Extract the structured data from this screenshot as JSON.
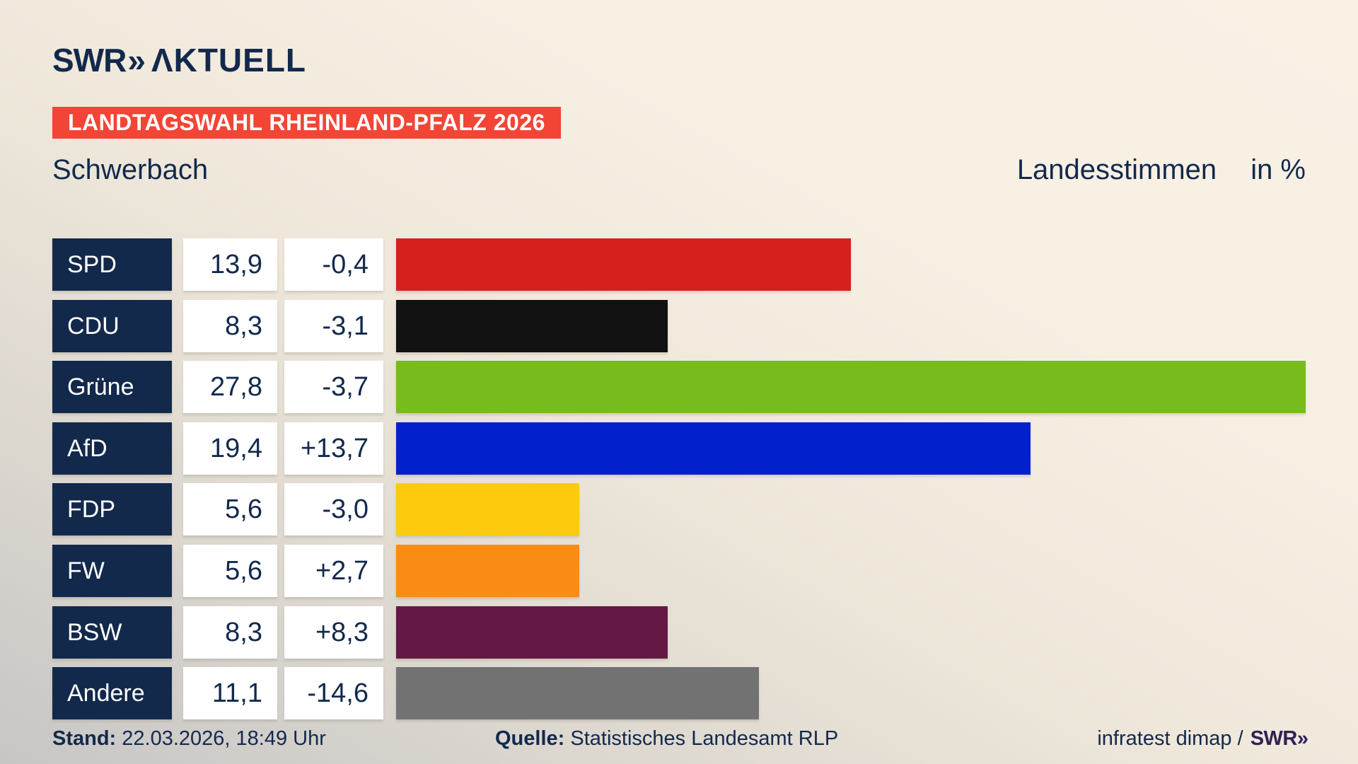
{
  "header": {
    "logo_swr": "SWR",
    "logo_chevrons": "»",
    "logo_aktuell": "ΛKTUELL",
    "banner": "LANDTAGSWAHL RHEINLAND-PFALZ 2026",
    "title_left": "Schwerbach",
    "title_right": "Landesstimmen",
    "title_unit": "in %"
  },
  "chart_data": {
    "type": "bar",
    "orientation": "horizontal",
    "title": "Landtagswahl Rheinland-Pfalz 2026 – Schwerbach – Landesstimmen in %",
    "unit": "%",
    "xlim": [
      0,
      27.8
    ],
    "categories": [
      "SPD",
      "CDU",
      "Grüne",
      "AfD",
      "FDP",
      "FW",
      "BSW",
      "Andere"
    ],
    "rows": [
      {
        "party": "SPD",
        "value": 13.9,
        "value_label": "13,9",
        "change": -0.4,
        "change_label": "-0,4",
        "color": "#d61f1f"
      },
      {
        "party": "CDU",
        "value": 8.3,
        "value_label": "8,3",
        "change": -3.1,
        "change_label": "-3,1",
        "color": "#121212"
      },
      {
        "party": "Grüne",
        "value": 27.8,
        "value_label": "27,8",
        "change": -3.7,
        "change_label": "-3,7",
        "color": "#77bb1d"
      },
      {
        "party": "AfD",
        "value": 19.4,
        "value_label": "19,4",
        "change": 13.7,
        "change_label": "+13,7",
        "color": "#0221cd"
      },
      {
        "party": "FDP",
        "value": 5.6,
        "value_label": "5,6",
        "change": -3.0,
        "change_label": "-3,0",
        "color": "#fdca0d"
      },
      {
        "party": "FW",
        "value": 5.6,
        "value_label": "5,6",
        "change": 2.7,
        "change_label": "+2,7",
        "color": "#f98c13"
      },
      {
        "party": "BSW",
        "value": 8.3,
        "value_label": "8,3",
        "change": 8.3,
        "change_label": "+8,3",
        "color": "#651844"
      },
      {
        "party": "Andere",
        "value": 11.1,
        "value_label": "11,1",
        "change": -14.6,
        "change_label": "-14,6",
        "color": "#727272"
      }
    ]
  },
  "footer": {
    "stand_label": "Stand:",
    "stand_value": "22.03.2026, 18:49 Uhr",
    "quelle_label": "Quelle:",
    "quelle_value": "Statistisches Landesamt RLP",
    "credit_regular": "infratest dimap /",
    "credit_swr": "SWR",
    "credit_chevrons": "»"
  }
}
